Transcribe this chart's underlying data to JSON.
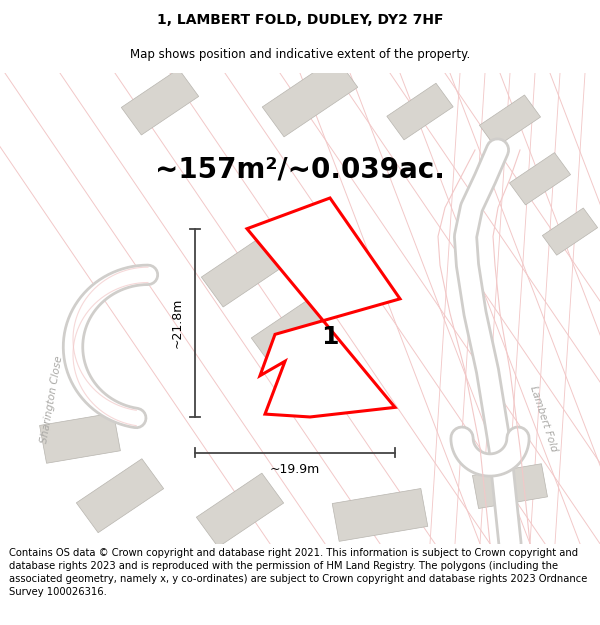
{
  "title_line1": "1, LAMBERT FOLD, DUDLEY, DY2 7HF",
  "title_line2": "Map shows position and indicative extent of the property.",
  "area_text": "~157m²/~0.039ac.",
  "label_number": "1",
  "dim_height": "~21.8m",
  "dim_width": "~19.9m",
  "footer_text": "Contains OS data © Crown copyright and database right 2021. This information is subject to Crown copyright and database rights 2023 and is reproduced with the permission of HM Land Registry. The polygons (including the associated geometry, namely x, y co-ordinates) are subject to Crown copyright and database rights 2023 Ordnance Survey 100026316.",
  "road_color": "#f2c8c8",
  "road_lw": 0.7,
  "building_color": "#d8d5cf",
  "building_edge": "#b8b5af",
  "street_road_color": "#d0cecb",
  "title_fontsize": 10,
  "subtitle_fontsize": 8.5,
  "area_fontsize": 20,
  "footer_fontsize": 7.2,
  "street_label_sharington": "Sharington Close",
  "street_label_lambert": "Lambert Fold"
}
